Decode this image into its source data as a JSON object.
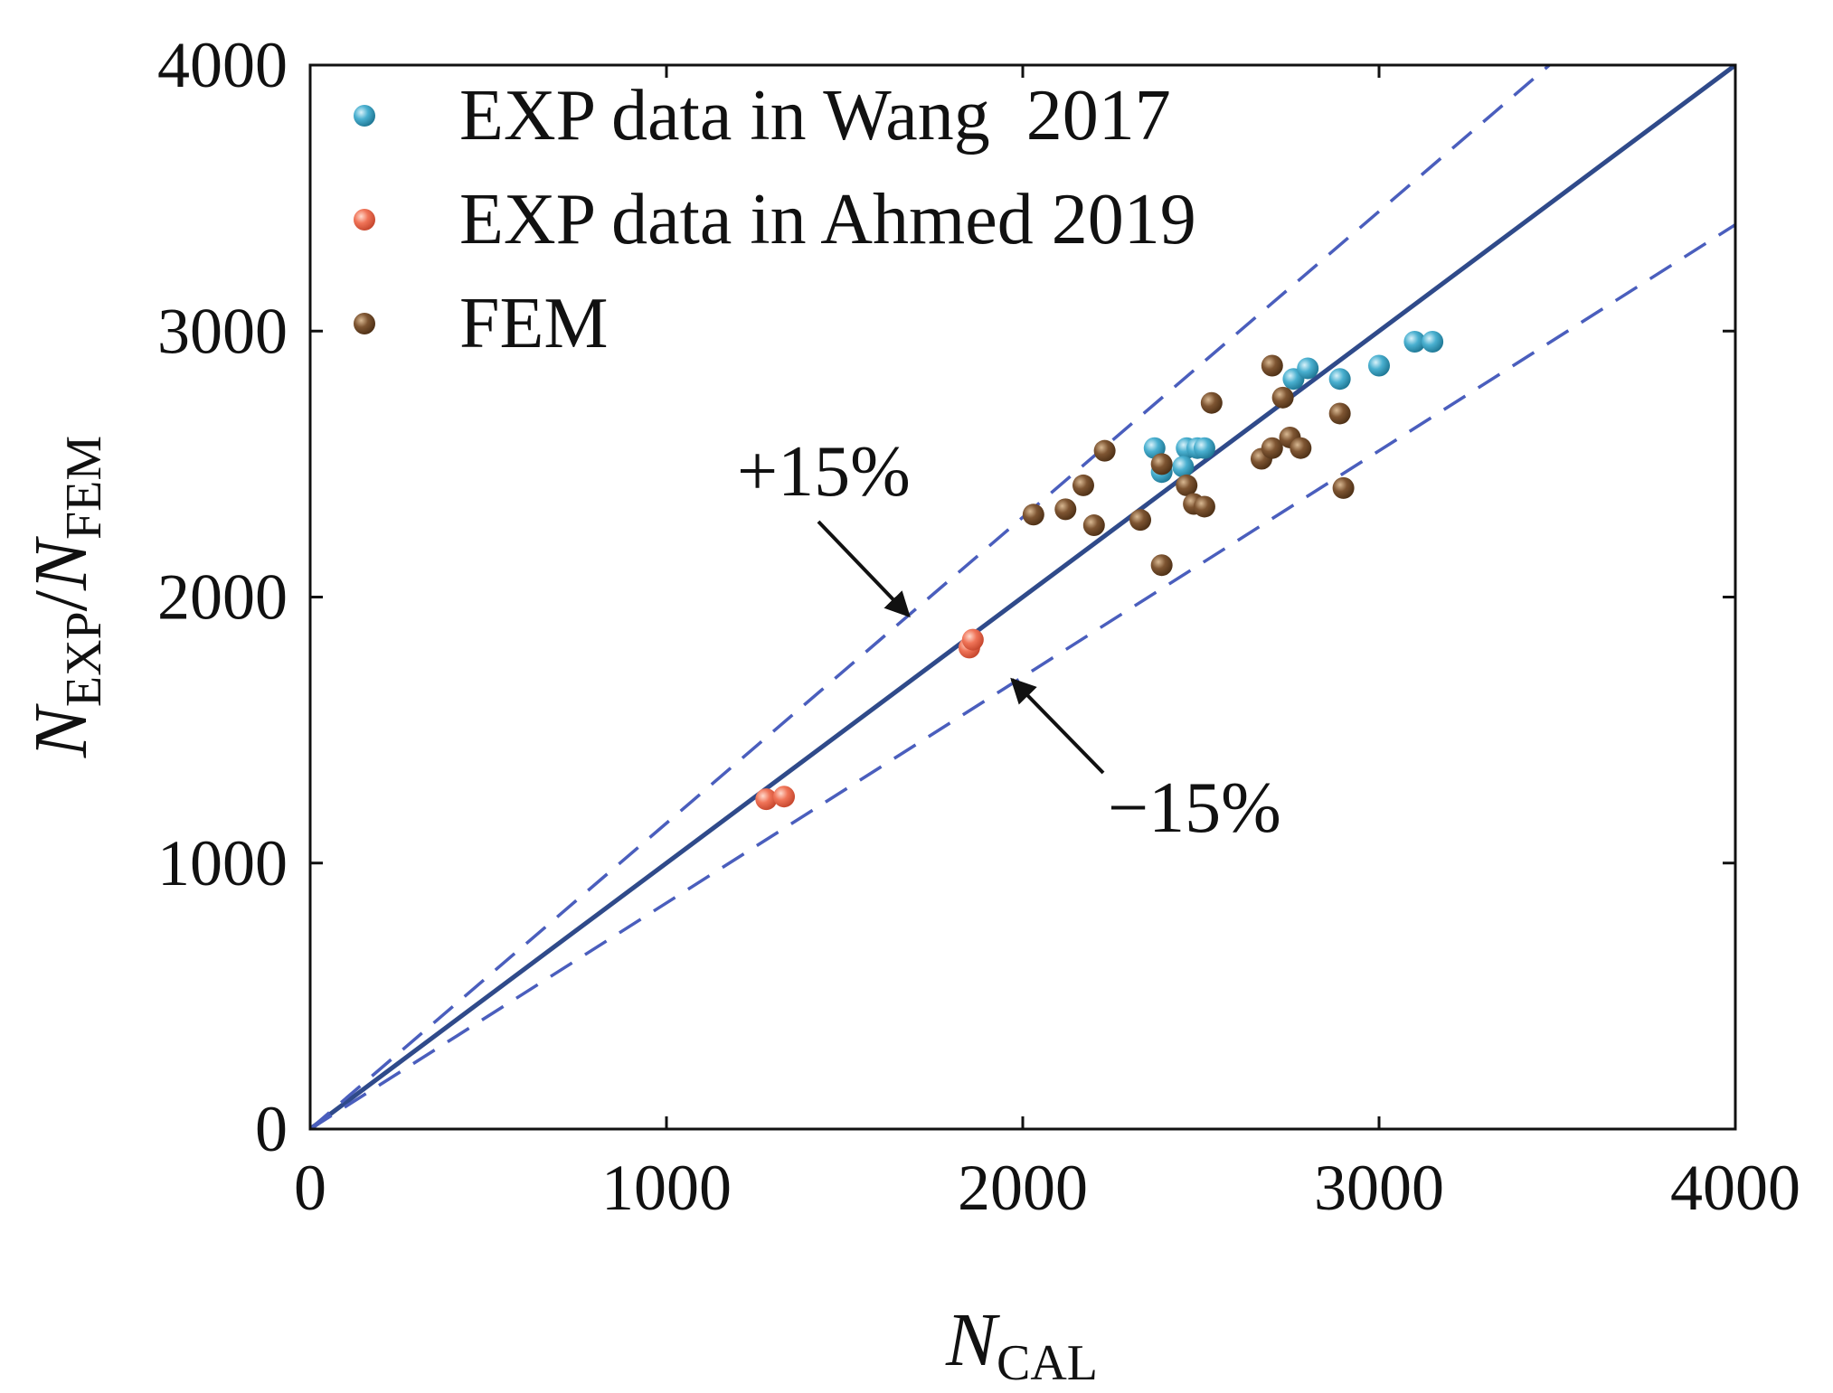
{
  "chart_data": {
    "type": "scatter",
    "xlabel": {
      "base": "N",
      "sub": "CAL"
    },
    "ylabel": {
      "base1": "N",
      "sub1": "EXP",
      "sep": "/",
      "base2": "N",
      "sub2": "FEM"
    },
    "xlim": [
      0,
      4000
    ],
    "ylim": [
      0,
      4000
    ],
    "xticks": [
      0,
      1000,
      2000,
      3000,
      4000
    ],
    "yticks": [
      0,
      1000,
      2000,
      3000,
      4000
    ],
    "tick_labels_x": [
      "0",
      "1000",
      "2000",
      "3000",
      "4000"
    ],
    "tick_labels_y": [
      "0",
      "1000",
      "2000",
      "3000",
      "4000"
    ],
    "grid": false,
    "legend_position": "top-left",
    "series": [
      {
        "name": "EXP data in Wang  2017",
        "color": "#3a9fbf",
        "points": [
          [
            2370,
            2560
          ],
          [
            2390,
            2470
          ],
          [
            2460,
            2560
          ],
          [
            2490,
            2560
          ],
          [
            2510,
            2560
          ],
          [
            2450,
            2490
          ],
          [
            2760,
            2820
          ],
          [
            2800,
            2860
          ],
          [
            2890,
            2820
          ],
          [
            3000,
            2870
          ],
          [
            3100,
            2960
          ],
          [
            3150,
            2960
          ]
        ]
      },
      {
        "name": "EXP data in Ahmed 2019",
        "color": "#ef6e55",
        "points": [
          [
            1280,
            1240
          ],
          [
            1330,
            1250
          ],
          [
            1850,
            1810
          ],
          [
            1860,
            1840
          ]
        ]
      },
      {
        "name": "FEM",
        "color": "#7a5230",
        "points": [
          [
            2030,
            2310
          ],
          [
            2120,
            2330
          ],
          [
            2170,
            2420
          ],
          [
            2200,
            2270
          ],
          [
            2230,
            2550
          ],
          [
            2330,
            2290
          ],
          [
            2390,
            2120
          ],
          [
            2390,
            2500
          ],
          [
            2460,
            2420
          ],
          [
            2480,
            2350
          ],
          [
            2510,
            2340
          ],
          [
            2530,
            2730
          ],
          [
            2670,
            2520
          ],
          [
            2700,
            2560
          ],
          [
            2700,
            2870
          ],
          [
            2730,
            2750
          ],
          [
            2750,
            2600
          ],
          [
            2780,
            2560
          ],
          [
            2890,
            2690
          ],
          [
            2900,
            2410
          ]
        ]
      }
    ],
    "lines": [
      {
        "name": "1:1",
        "slope": 1.0,
        "style": "solid",
        "color": "#2f4a8a"
      },
      {
        "name": "+15%",
        "slope": 1.15,
        "style": "dashed",
        "color": "#4a5ebd"
      },
      {
        "name": "-15%",
        "slope": 0.85,
        "style": "dashed",
        "color": "#4a5ebd"
      }
    ],
    "annotations": [
      {
        "text": "+15%",
        "arrow_to": [
          1680,
          1930
        ]
      },
      {
        "text": "−15%",
        "arrow_to": [
          1970,
          1690
        ]
      }
    ]
  }
}
